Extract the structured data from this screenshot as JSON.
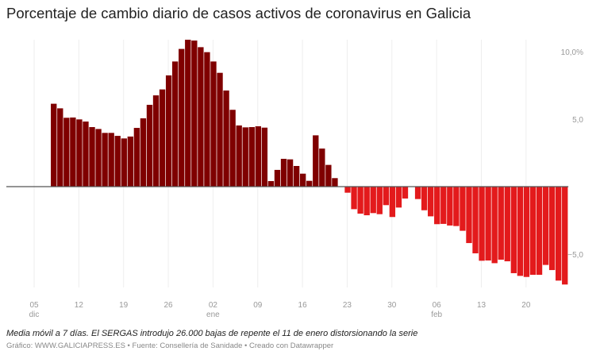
{
  "chart_data": {
    "type": "bar",
    "title": "Porcentaje de cambio diario de casos activos de coronavirus en Galicia",
    "xlabel": "",
    "ylabel": "",
    "ylim": [
      -7.5,
      11
    ],
    "grid": "vertical",
    "legend": "none",
    "colors": {
      "positive": "#7f0000",
      "negative": "#e31a1c",
      "gridline": "#eeeeee",
      "baseline": "#555555"
    },
    "y_ticks": [
      {
        "value": 10,
        "label": "10,0%"
      },
      {
        "value": 5,
        "label": "5,0"
      },
      {
        "value": -5,
        "label": "−5,0"
      }
    ],
    "x_ticks": [
      {
        "date": "05 dic",
        "label": "05",
        "sublabel": "dic"
      },
      {
        "date": "12 dic",
        "label": "12",
        "sublabel": ""
      },
      {
        "date": "19 dic",
        "label": "19",
        "sublabel": ""
      },
      {
        "date": "26 dic",
        "label": "26",
        "sublabel": ""
      },
      {
        "date": "02 ene",
        "label": "02",
        "sublabel": "ene"
      },
      {
        "date": "09 ene",
        "label": "09",
        "sublabel": ""
      },
      {
        "date": "16 ene",
        "label": "16",
        "sublabel": ""
      },
      {
        "date": "23 ene",
        "label": "23",
        "sublabel": ""
      },
      {
        "date": "30 ene",
        "label": "30",
        "sublabel": ""
      },
      {
        "date": "06 feb",
        "label": "06",
        "sublabel": "feb"
      },
      {
        "date": "13 feb",
        "label": "13",
        "sublabel": ""
      },
      {
        "date": "20 feb",
        "label": "20",
        "sublabel": ""
      }
    ],
    "x_range": [
      "01 dic",
      "27 feb"
    ],
    "dates": [
      "08 dic",
      "09 dic",
      "10 dic",
      "11 dic",
      "12 dic",
      "13 dic",
      "14 dic",
      "15 dic",
      "16 dic",
      "17 dic",
      "18 dic",
      "19 dic",
      "20 dic",
      "21 dic",
      "22 dic",
      "23 dic",
      "24 dic",
      "25 dic",
      "26 dic",
      "27 dic",
      "28 dic",
      "29 dic",
      "30 dic",
      "31 dic",
      "01 ene",
      "02 ene",
      "03 ene",
      "04 ene",
      "05 ene",
      "06 ene",
      "07 ene",
      "08 ene",
      "09 ene",
      "10 ene",
      "11 ene",
      "12 ene",
      "13 ene",
      "14 ene",
      "15 ene",
      "16 ene",
      "17 ene",
      "18 ene",
      "19 ene",
      "20 ene",
      "21 ene",
      "22 ene",
      "23 ene",
      "24 ene",
      "25 ene",
      "26 ene",
      "27 ene",
      "28 ene",
      "29 ene",
      "30 ene",
      "31 ene",
      "01 feb",
      "02 feb",
      "03 feb",
      "04 feb",
      "05 feb",
      "06 feb",
      "07 feb",
      "08 feb",
      "09 feb",
      "10 feb",
      "11 feb",
      "12 feb",
      "13 feb",
      "14 feb",
      "15 feb",
      "16 feb",
      "17 feb",
      "18 feb",
      "19 feb",
      "20 feb",
      "21 feb",
      "22 feb",
      "23 feb",
      "24 feb",
      "25 feb",
      "26 feb"
    ],
    "values": [
      6.14,
      5.8,
      5.1,
      5.12,
      4.98,
      4.82,
      4.41,
      4.27,
      3.98,
      3.98,
      3.76,
      3.57,
      3.71,
      4.35,
      5.06,
      6.06,
      6.76,
      7.2,
      8.24,
      9.27,
      10.2,
      10.88,
      10.82,
      10.33,
      9.96,
      9.27,
      8.43,
      7.12,
      5.69,
      4.53,
      4.39,
      4.41,
      4.47,
      4.37,
      0.41,
      1.24,
      2.06,
      2.02,
      1.53,
      0.96,
      0.43,
      3.8,
      2.82,
      1.61,
      0.63,
      0,
      -0.45,
      -1.67,
      -2.0,
      -2.12,
      -1.96,
      -2.04,
      -1.37,
      -2.25,
      -1.55,
      -0.88,
      0,
      -0.92,
      -1.75,
      -2.2,
      -2.78,
      -2.76,
      -2.88,
      -2.92,
      -3.27,
      -4.18,
      -4.94,
      -5.49,
      -5.47,
      -5.67,
      -5.41,
      -5.53,
      -6.41,
      -6.61,
      -6.69,
      -6.53,
      -6.53,
      -5.8,
      -6.18,
      -6.96,
      -7.25
    ]
  },
  "note": "Media móvil a 7 días. El SERGAS introdujo 26.000 bajas de repente el 11 de enero distorsionando la serie",
  "credit": "Gráfico: WWW.GALICIAPRESS.ES • Fuente: Consellería de Sanidade • Creado con Datawrapper"
}
